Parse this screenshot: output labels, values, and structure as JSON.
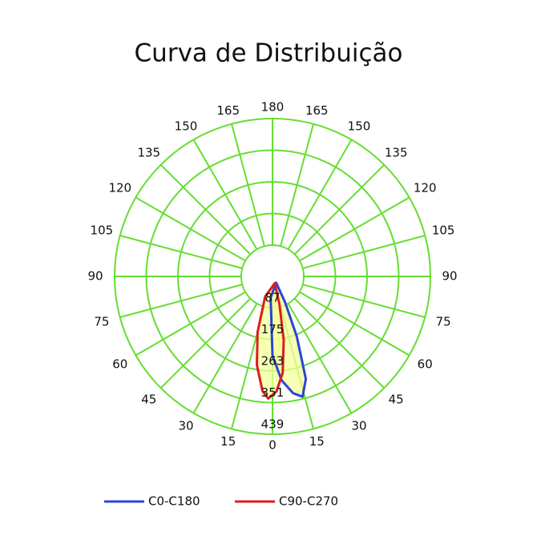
{
  "chart_data": {
    "type": "polar",
    "title": "Curva de Distribuição",
    "rlim": [
      0,
      439
    ],
    "rticks": [
      87,
      175,
      263,
      351,
      439
    ],
    "angle_ticks": [
      0,
      15,
      30,
      45,
      60,
      75,
      90,
      105,
      120,
      135,
      150,
      165,
      180
    ],
    "grid_color": "#66dd33",
    "fill_color": "#f4ff99",
    "series": [
      {
        "name": "C0-C180",
        "color": "#2b44d6",
        "angles": [
          -5,
          0,
          5,
          10,
          14,
          18,
          22,
          26,
          30
        ],
        "values": [
          60,
          220,
          290,
          330,
          345,
          300,
          180,
          80,
          20
        ]
      },
      {
        "name": "C90-C270",
        "color": "#e01b1b",
        "angles": [
          -20,
          -15,
          -10,
          -5,
          -2,
          2,
          6,
          10,
          14,
          18
        ],
        "values": [
          60,
          160,
          250,
          320,
          340,
          320,
          270,
          180,
          80,
          20
        ]
      }
    ]
  }
}
